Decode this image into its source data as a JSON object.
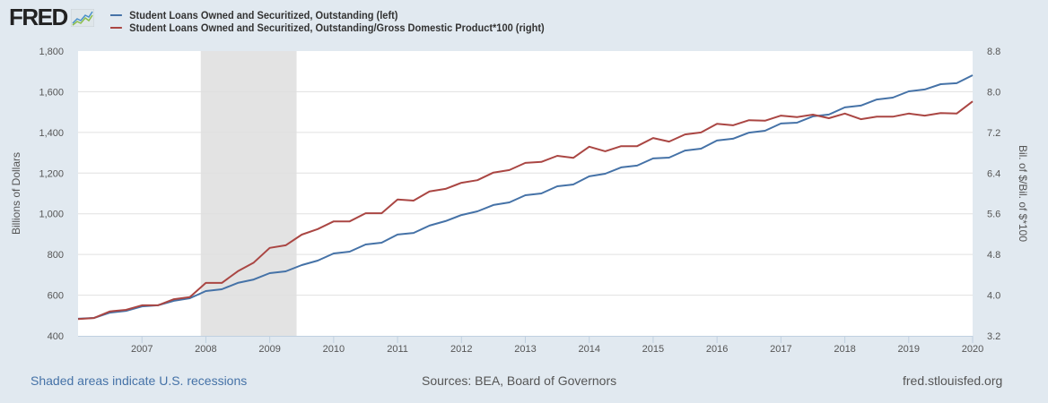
{
  "brand": {
    "logo_text": "FRED",
    "logo_icon": "line-chart-icon"
  },
  "footer": {
    "recession_note": "Shaded areas indicate U.S. recessions",
    "sources": "Sources: BEA, Board of Governors",
    "site": "fred.stlouisfed.org"
  },
  "colors": {
    "series_left": "#4572a7",
    "series_right": "#aa4643",
    "recession": "#e3e3e3",
    "background": "#e1e9f0",
    "plot_bg": "#ffffff",
    "grid": "#e0e0e0"
  },
  "chart_data": {
    "type": "line",
    "title": "",
    "xlabel": "",
    "ylabel": "Billions of Dollars",
    "y2label": "Bil. of $/Bil. of $*100",
    "xlim": [
      2006.0,
      2020.0
    ],
    "ylim": [
      400,
      1800
    ],
    "y2lim": [
      3.2,
      8.8
    ],
    "grid": true,
    "legend_position": "top-left",
    "x_ticks": [
      "2007",
      "2008",
      "2009",
      "2010",
      "2011",
      "2012",
      "2013",
      "2014",
      "2015",
      "2016",
      "2017",
      "2018",
      "2019",
      "2020"
    ],
    "y_ticks": [
      "400",
      "600",
      "800",
      "1,000",
      "1,200",
      "1,400",
      "1,600",
      "1,800"
    ],
    "y2_ticks": [
      "3.2",
      "4.0",
      "4.8",
      "5.6",
      "6.4",
      "7.2",
      "8.0",
      "8.8"
    ],
    "recessions": [
      {
        "start": 2007.92,
        "end": 2009.42
      }
    ],
    "x": [
      2006.0,
      2006.25,
      2006.5,
      2006.75,
      2007.0,
      2007.25,
      2007.5,
      2007.75,
      2008.0,
      2008.25,
      2008.5,
      2008.75,
      2009.0,
      2009.25,
      2009.5,
      2009.75,
      2010.0,
      2010.25,
      2010.5,
      2010.75,
      2011.0,
      2011.25,
      2011.5,
      2011.75,
      2012.0,
      2012.25,
      2012.5,
      2012.75,
      2013.0,
      2013.25,
      2013.5,
      2013.75,
      2014.0,
      2014.25,
      2014.5,
      2014.75,
      2015.0,
      2015.25,
      2015.5,
      2015.75,
      2016.0,
      2016.25,
      2016.5,
      2016.75,
      2017.0,
      2017.25,
      2017.5,
      2017.75,
      2018.0,
      2018.25,
      2018.5,
      2018.75,
      2019.0,
      2019.25,
      2019.5,
      2019.75,
      2020.0
    ],
    "series": [
      {
        "name": "Student Loans Owned and Securitized, Outstanding (left)",
        "axis": "left",
        "values": [
          484,
          488,
          514,
          523,
          545,
          550,
          572,
          585,
          620,
          629,
          660,
          677,
          708,
          717,
          748,
          770,
          805,
          814,
          849,
          858,
          898,
          906,
          942,
          964,
          994,
          1012,
          1043,
          1056,
          1091,
          1100,
          1135,
          1144,
          1184,
          1197,
          1228,
          1237,
          1272,
          1276,
          1311,
          1320,
          1360,
          1369,
          1399,
          1408,
          1444,
          1448,
          1479,
          1488,
          1523,
          1532,
          1562,
          1571,
          1602,
          1611,
          1637,
          1642,
          1681
        ]
      },
      {
        "name": "Student Loans Owned and Securitized, Outstanding/Gross Domestic Product*100 (right)",
        "axis": "right",
        "values": [
          3.53,
          3.55,
          3.68,
          3.71,
          3.8,
          3.8,
          3.92,
          3.96,
          4.24,
          4.24,
          4.47,
          4.64,
          4.93,
          4.98,
          5.19,
          5.3,
          5.45,
          5.45,
          5.61,
          5.61,
          5.88,
          5.86,
          6.04,
          6.09,
          6.21,
          6.26,
          6.41,
          6.46,
          6.6,
          6.62,
          6.74,
          6.7,
          6.92,
          6.83,
          6.93,
          6.93,
          7.09,
          7.02,
          7.16,
          7.2,
          7.37,
          7.34,
          7.44,
          7.43,
          7.53,
          7.5,
          7.55,
          7.48,
          7.57,
          7.46,
          7.51,
          7.51,
          7.57,
          7.53,
          7.58,
          7.57,
          7.81
        ]
      }
    ]
  }
}
